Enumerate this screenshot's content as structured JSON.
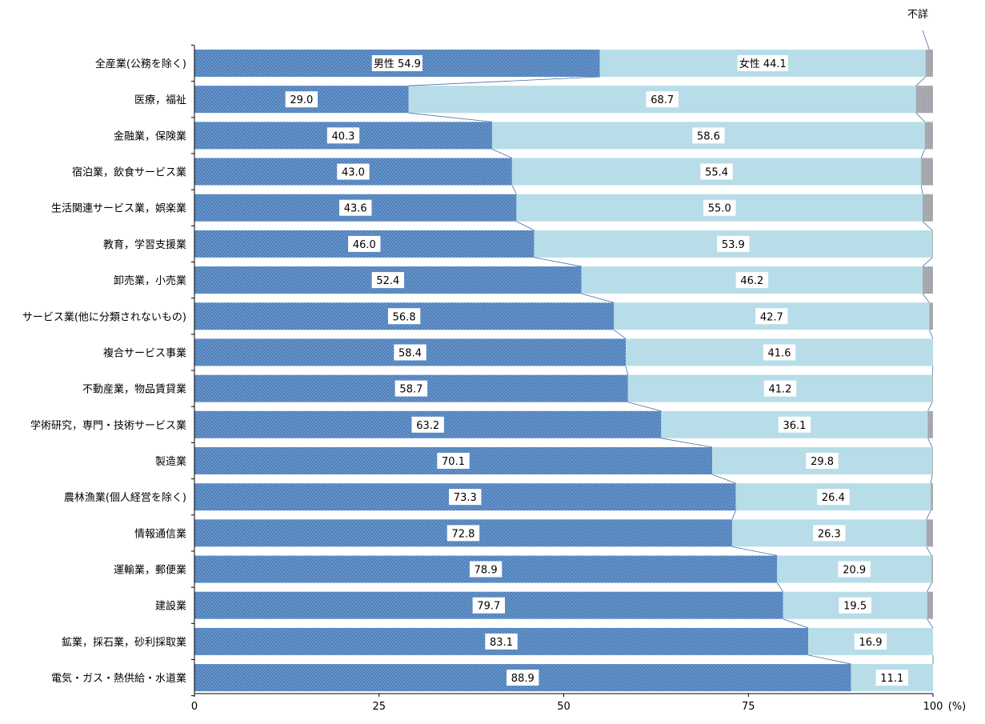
{
  "chart_data": {
    "type": "bar",
    "orientation": "horizontal",
    "stacked": "percent",
    "title": "",
    "xlabel": "",
    "ylabel": "",
    "x_unit": "(%)",
    "xlim": [
      0,
      100
    ],
    "x_ticks": [
      "0",
      "25",
      "50",
      "75",
      "100"
    ],
    "categories": [
      "全産業(公務を除く)",
      "医療，福祉",
      "金融業，保険業",
      "宿泊業，飲食サービス業",
      "生活関連サービス業，娯楽業",
      "教育，学習支援業",
      "卸売業，小売業",
      "サービス業(他に分類されないもの)",
      "複合サービス事業",
      "不動産業，物品賃貸業",
      "学術研究，専門・技術サービス業",
      "製造業",
      "農林漁業(個人経営を除く)",
      "情報通信業",
      "運輸業，郵便業",
      "建設業",
      "鉱業，採石業，砂利採取業",
      "電気・ガス・熱供給・水道業"
    ],
    "series": [
      {
        "name": "男性",
        "color": "#4f81bd",
        "values": [
          54.9,
          29.0,
          40.3,
          43.0,
          43.6,
          46.0,
          52.4,
          56.8,
          58.4,
          58.7,
          63.2,
          70.1,
          73.3,
          72.8,
          78.9,
          79.7,
          83.1,
          88.9
        ],
        "labels": [
          "男性 54.9",
          "29.0",
          "40.3",
          "43.0",
          "43.6",
          "46.0",
          "52.4",
          "56.8",
          "58.4",
          "58.7",
          "63.2",
          "70.1",
          "73.3",
          "72.8",
          "78.9",
          "79.7",
          "83.1",
          "88.9"
        ]
      },
      {
        "name": "女性",
        "color": "#b7dde8",
        "values": [
          44.1,
          68.7,
          58.6,
          55.4,
          55.0,
          53.9,
          46.2,
          42.7,
          41.6,
          41.2,
          36.1,
          29.8,
          26.4,
          26.3,
          20.9,
          19.5,
          16.9,
          11.1
        ],
        "labels": [
          "女性 44.1",
          "68.7",
          "58.6",
          "55.4",
          "55.0",
          "53.9",
          "46.2",
          "42.7",
          "41.6",
          "41.2",
          "36.1",
          "29.8",
          "26.4",
          "26.3",
          "20.9",
          "19.5",
          "16.9",
          "11.1"
        ]
      },
      {
        "name": "不詳",
        "color": "#a6a6a6",
        "values": [
          1.0,
          2.3,
          1.1,
          1.6,
          1.4,
          0.1,
          1.4,
          0.5,
          0.0,
          0.1,
          0.7,
          0.1,
          0.3,
          0.9,
          0.2,
          0.8,
          0.0,
          0.0
        ]
      }
    ],
    "series_lines": true,
    "grid": false,
    "legend": "none"
  }
}
